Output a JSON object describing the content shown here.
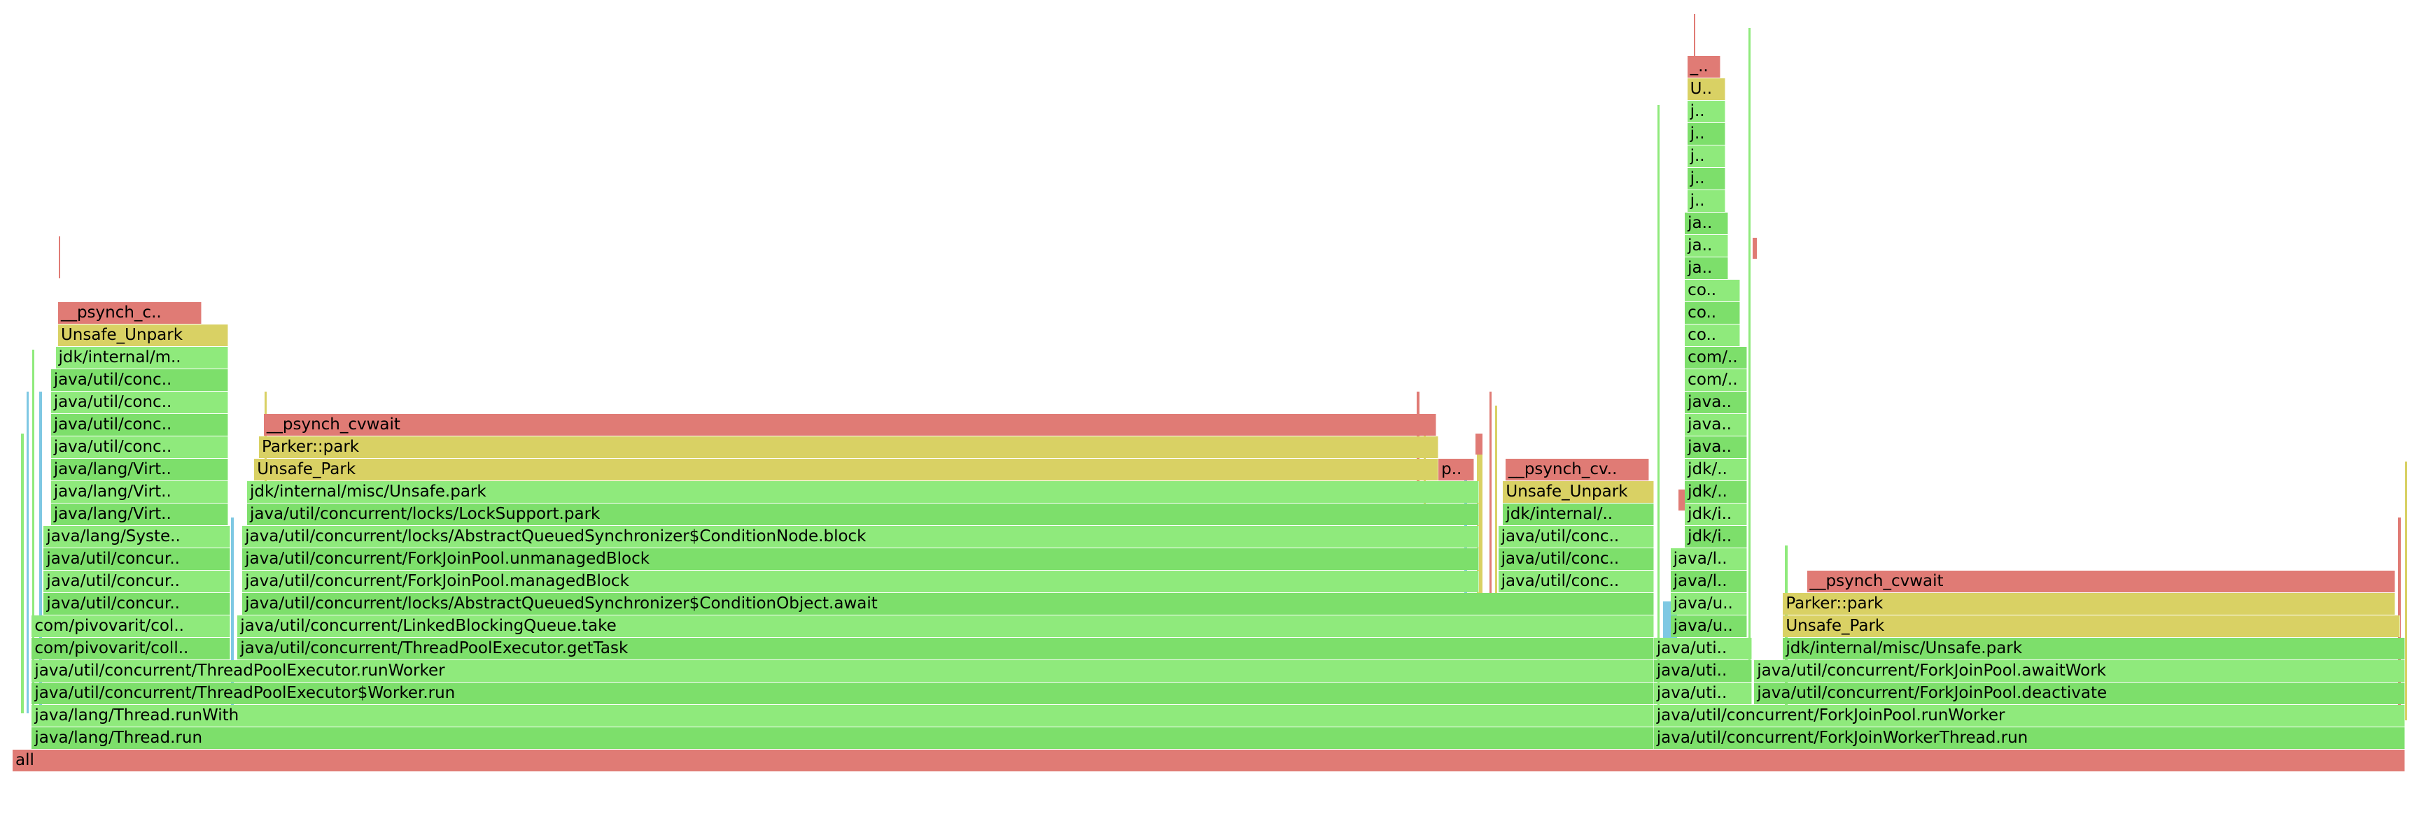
{
  "view": {
    "type": "flame-graph",
    "row_count": 34,
    "root": "all"
  },
  "colors": {
    "green_a": "#7ddf6b",
    "green_b": "#8fea7c",
    "red": "#e07b75",
    "yellow": "#d9d164",
    "cyan": "#7ec8e3"
  },
  "frames": [
    {
      "label": "all",
      "color": "red",
      "row": 0,
      "start": 0.0,
      "end": 1.0
    },
    {
      "label": "java/lang/Thread.run",
      "color": "green_a",
      "row": 1,
      "start": 0.008,
      "end": 0.686
    },
    {
      "label": "java/lang/Thread.runWith",
      "color": "green_b",
      "row": 2,
      "start": 0.008,
      "end": 0.686
    },
    {
      "label": "java/util/concurrent/ThreadPoolExecutor$Worker.run",
      "color": "green_a",
      "row": 3,
      "start": 0.008,
      "end": 0.686
    },
    {
      "label": "java/util/concurrent/ThreadPoolExecutor.runWorker",
      "color": "green_b",
      "row": 4,
      "start": 0.008,
      "end": 0.686
    },
    {
      "label": "com/pivovarit/coll..",
      "color": "green_a",
      "row": 5,
      "start": 0.008,
      "end": 0.091
    },
    {
      "label": "com/pivovarit/col..",
      "color": "green_b",
      "row": 6,
      "start": 0.008,
      "end": 0.091
    },
    {
      "label": "java/util/concur..",
      "color": "green_a",
      "row": 7,
      "start": 0.013,
      "end": 0.091
    },
    {
      "label": "java/util/concur..",
      "color": "green_b",
      "row": 8,
      "start": 0.013,
      "end": 0.091
    },
    {
      "label": "java/util/concur..",
      "color": "green_a",
      "row": 9,
      "start": 0.013,
      "end": 0.091
    },
    {
      "label": "java/lang/Syste..",
      "color": "green_b",
      "row": 10,
      "start": 0.013,
      "end": 0.091
    },
    {
      "label": "java/lang/Virt..",
      "color": "green_a",
      "row": 11,
      "start": 0.016,
      "end": 0.09
    },
    {
      "label": "java/lang/Virt..",
      "color": "green_b",
      "row": 12,
      "start": 0.016,
      "end": 0.09
    },
    {
      "label": "java/lang/Virt..",
      "color": "green_a",
      "row": 13,
      "start": 0.016,
      "end": 0.09
    },
    {
      "label": "java/util/conc..",
      "color": "green_b",
      "row": 14,
      "start": 0.016,
      "end": 0.09
    },
    {
      "label": "java/util/conc..",
      "color": "green_a",
      "row": 15,
      "start": 0.016,
      "end": 0.09
    },
    {
      "label": "java/util/conc..",
      "color": "green_b",
      "row": 16,
      "start": 0.016,
      "end": 0.09
    },
    {
      "label": "java/util/conc..",
      "color": "green_a",
      "row": 17,
      "start": 0.016,
      "end": 0.09
    },
    {
      "label": "jdk/internal/m..",
      "color": "green_b",
      "row": 18,
      "start": 0.018,
      "end": 0.09
    },
    {
      "label": "Unsafe_Unpark",
      "color": "yellow",
      "row": 19,
      "start": 0.019,
      "end": 0.09
    },
    {
      "label": "__psynch_c..",
      "color": "red",
      "row": 20,
      "start": 0.019,
      "end": 0.079
    },
    {
      "label": "java/util/concurrent/ThreadPoolExecutor.getTask",
      "color": "green_a",
      "row": 5,
      "start": 0.094,
      "end": 0.686
    },
    {
      "label": "java/util/concurrent/LinkedBlockingQueue.take",
      "color": "green_b",
      "row": 6,
      "start": 0.094,
      "end": 0.686
    },
    {
      "label": "java/util/concurrent/locks/AbstractQueuedSynchronizer$ConditionObject.await",
      "color": "green_a",
      "row": 7,
      "start": 0.096,
      "end": 0.686
    },
    {
      "label": "java/util/concurrent/ForkJoinPool.managedBlock",
      "color": "green_b",
      "row": 8,
      "start": 0.096,
      "end": 0.613
    },
    {
      "label": "java/util/concurrent/ForkJoinPool.unmanagedBlock",
      "color": "green_a",
      "row": 9,
      "start": 0.096,
      "end": 0.613
    },
    {
      "label": "java/util/concurrent/locks/AbstractQueuedSynchronizer$ConditionNode.block",
      "color": "green_b",
      "row": 10,
      "start": 0.096,
      "end": 0.613
    },
    {
      "label": "java/util/concurrent/locks/LockSupport.park",
      "color": "green_a",
      "row": 11,
      "start": 0.098,
      "end": 0.613
    },
    {
      "label": "jdk/internal/misc/Unsafe.park",
      "color": "green_b",
      "row": 12,
      "start": 0.098,
      "end": 0.613
    },
    {
      "label": "Unsafe_Park",
      "color": "yellow",
      "row": 13,
      "start": 0.101,
      "end": 0.596
    },
    {
      "label": "p..",
      "color": "red",
      "row": 13,
      "start": 0.596,
      "end": 0.611
    },
    {
      "label": "Parker::park",
      "color": "yellow",
      "row": 14,
      "start": 0.103,
      "end": 0.596
    },
    {
      "label": "__psynch_cvwait",
      "color": "red",
      "row": 15,
      "start": 0.105,
      "end": 0.595
    },
    {
      "label": "java/util/conc..",
      "color": "green_b",
      "row": 8,
      "start": 0.621,
      "end": 0.686
    },
    {
      "label": "java/util/conc..",
      "color": "green_a",
      "row": 9,
      "start": 0.621,
      "end": 0.686
    },
    {
      "label": "java/util/conc..",
      "color": "green_b",
      "row": 10,
      "start": 0.621,
      "end": 0.686
    },
    {
      "label": "jdk/internal/..",
      "color": "green_a",
      "row": 11,
      "start": 0.623,
      "end": 0.686
    },
    {
      "label": "Unsafe_Unpark",
      "color": "yellow",
      "row": 12,
      "start": 0.623,
      "end": 0.686
    },
    {
      "label": "__psynch_cv..",
      "color": "red",
      "row": 13,
      "start": 0.624,
      "end": 0.684
    },
    {
      "label": "java/util/concurrent/ForkJoinWorkerThread.run",
      "color": "green_a",
      "row": 1,
      "start": 0.686,
      "end": 1.0
    },
    {
      "label": "java/util/concurrent/ForkJoinPool.runWorker",
      "color": "green_b",
      "row": 2,
      "start": 0.686,
      "end": 1.0
    },
    {
      "label": "java/util/concurrent/ForkJoinPool.deactivate",
      "color": "green_a",
      "row": 3,
      "start": 0.728,
      "end": 1.0
    },
    {
      "label": "java/util/concurrent/ForkJoinPool.awaitWork",
      "color": "green_b",
      "row": 4,
      "start": 0.728,
      "end": 1.0
    },
    {
      "label": "jdk/internal/misc/Unsafe.park",
      "color": "green_a",
      "row": 5,
      "start": 0.74,
      "end": 1.0
    },
    {
      "label": "Unsafe_Park",
      "color": "yellow",
      "row": 6,
      "start": 0.74,
      "end": 0.998
    },
    {
      "label": "Parker::park",
      "color": "yellow",
      "row": 7,
      "start": 0.74,
      "end": 0.996
    },
    {
      "label": "__psynch_cvwait",
      "color": "red",
      "row": 8,
      "start": 0.75,
      "end": 0.996
    },
    {
      "label": "java/uti..",
      "color": "green_b",
      "row": 3,
      "start": 0.686,
      "end": 0.727
    },
    {
      "label": "java/uti..",
      "color": "green_a",
      "row": 4,
      "start": 0.686,
      "end": 0.727
    },
    {
      "label": "java/uti..",
      "color": "green_b",
      "row": 5,
      "start": 0.686,
      "end": 0.727
    },
    {
      "label": "java/u..",
      "color": "green_a",
      "row": 6,
      "start": 0.693,
      "end": 0.725
    },
    {
      "label": "java/u..",
      "color": "green_b",
      "row": 7,
      "start": 0.693,
      "end": 0.725
    },
    {
      "label": "java/l..",
      "color": "green_a",
      "row": 8,
      "start": 0.693,
      "end": 0.725
    },
    {
      "label": "java/l..",
      "color": "green_b",
      "row": 9,
      "start": 0.693,
      "end": 0.725
    },
    {
      "label": "jdk/i..",
      "color": "green_a",
      "row": 10,
      "start": 0.699,
      "end": 0.725
    },
    {
      "label": "jdk/i..",
      "color": "green_b",
      "row": 11,
      "start": 0.699,
      "end": 0.725
    },
    {
      "label": "jdk/..",
      "color": "green_a",
      "row": 12,
      "start": 0.699,
      "end": 0.725
    },
    {
      "label": "jdk/..",
      "color": "green_b",
      "row": 13,
      "start": 0.699,
      "end": 0.725
    },
    {
      "label": "java..",
      "color": "green_a",
      "row": 14,
      "start": 0.699,
      "end": 0.725
    },
    {
      "label": "java..",
      "color": "green_b",
      "row": 15,
      "start": 0.699,
      "end": 0.725
    },
    {
      "label": "java..",
      "color": "green_a",
      "row": 16,
      "start": 0.699,
      "end": 0.725
    },
    {
      "label": "com/..",
      "color": "green_b",
      "row": 17,
      "start": 0.699,
      "end": 0.725
    },
    {
      "label": "com/..",
      "color": "green_a",
      "row": 18,
      "start": 0.699,
      "end": 0.725
    },
    {
      "label": "co..",
      "color": "green_b",
      "row": 19,
      "start": 0.699,
      "end": 0.722
    },
    {
      "label": "co..",
      "color": "green_a",
      "row": 20,
      "start": 0.699,
      "end": 0.722
    },
    {
      "label": "co..",
      "color": "green_b",
      "row": 21,
      "start": 0.699,
      "end": 0.722
    },
    {
      "label": "ja..",
      "color": "green_a",
      "row": 22,
      "start": 0.699,
      "end": 0.717
    },
    {
      "label": "ja..",
      "color": "green_b",
      "row": 23,
      "start": 0.699,
      "end": 0.717
    },
    {
      "label": "ja..",
      "color": "green_a",
      "row": 24,
      "start": 0.699,
      "end": 0.717
    },
    {
      "label": "j..",
      "color": "green_b",
      "row": 25,
      "start": 0.7,
      "end": 0.716
    },
    {
      "label": "j..",
      "color": "green_a",
      "row": 26,
      "start": 0.7,
      "end": 0.716
    },
    {
      "label": "j..",
      "color": "green_b",
      "row": 27,
      "start": 0.7,
      "end": 0.716
    },
    {
      "label": "j..",
      "color": "green_a",
      "row": 28,
      "start": 0.7,
      "end": 0.716
    },
    {
      "label": "j..",
      "color": "green_b",
      "row": 29,
      "start": 0.7,
      "end": 0.716
    },
    {
      "label": "U..",
      "color": "yellow",
      "row": 30,
      "start": 0.7,
      "end": 0.716
    },
    {
      "label": "_..",
      "color": "red",
      "row": 31,
      "start": 0.7,
      "end": 0.714
    }
  ]
}
